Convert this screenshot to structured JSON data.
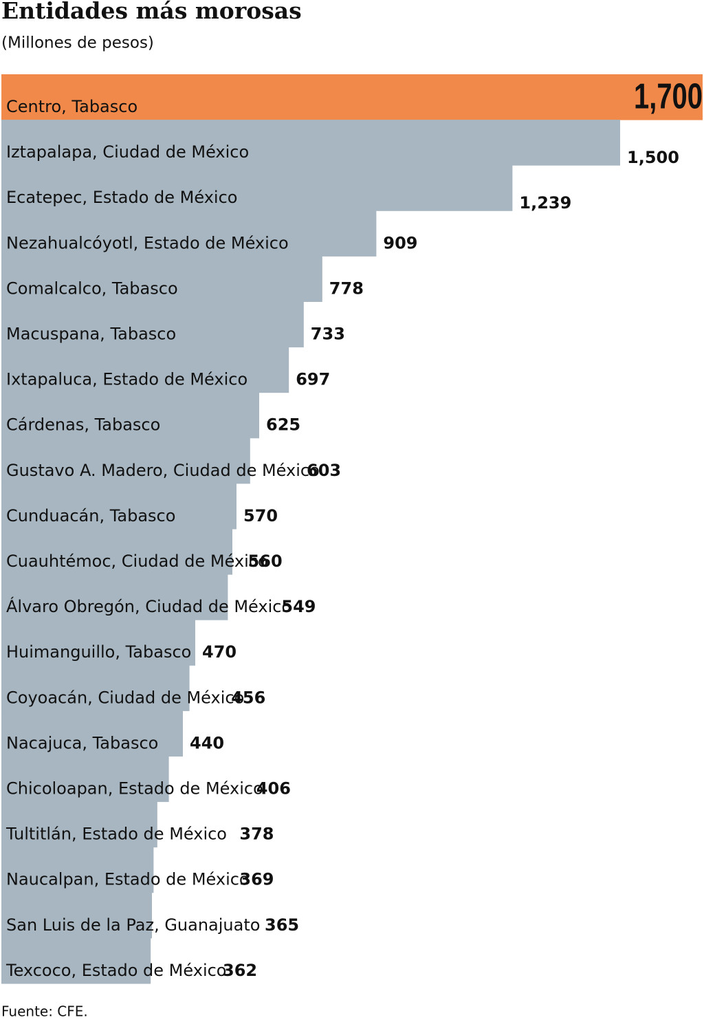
{
  "chart_data": {
    "type": "bar",
    "orientation": "horizontal",
    "title": "Entidades más morosas",
    "subtitle": "(Millones de pesos)",
    "source": "Fuente: CFE.",
    "categories": [
      "Centro, Tabasco",
      "Iztapalapa, Ciudad de México",
      "Ecatepec, Estado de México",
      "Nezahualcóyotl, Estado de México",
      "Comalcalco, Tabasco",
      "Macuspana, Tabasco",
      "Ixtapaluca, Estado de México",
      "Cárdenas, Tabasco",
      "Gustavo A. Madero, Ciudad de México",
      "Cunduacán, Tabasco",
      "Cuauhtémoc, Ciudad de México",
      "Álvaro Obregón, Ciudad de México",
      "Huimanguillo, Tabasco",
      "Coyoacán, Ciudad de México",
      "Nacajuca, Tabasco",
      "Chicoloapan, Estado de México",
      "Tultitlán, Estado de México",
      "Naucalpan, Estado de México",
      "San Luis de la Paz, Guanajuato",
      "Texcoco, Estado de México"
    ],
    "values": [
      1700,
      1500,
      1239,
      909,
      778,
      733,
      697,
      625,
      603,
      570,
      560,
      549,
      470,
      456,
      440,
      406,
      378,
      369,
      365,
      362
    ],
    "value_labels": [
      "1,700",
      "1,500",
      "1,239",
      "909",
      "778",
      "733",
      "697",
      "625",
      "603",
      "570",
      "560",
      "549",
      "470",
      "456",
      "440",
      "406",
      "378",
      "369",
      "365",
      "362"
    ],
    "colors": [
      "#f0894a",
      "#a7b6c1",
      "#a7b6c1",
      "#a7b6c1",
      "#a7b6c1",
      "#a7b6c1",
      "#a7b6c1",
      "#a7b6c1",
      "#a7b6c1",
      "#a7b6c1",
      "#a7b6c1",
      "#a7b6c1",
      "#a7b6c1",
      "#a7b6c1",
      "#a7b6c1",
      "#a7b6c1",
      "#a7b6c1",
      "#a7b6c1",
      "#a7b6c1",
      "#a7b6c1"
    ]
  }
}
